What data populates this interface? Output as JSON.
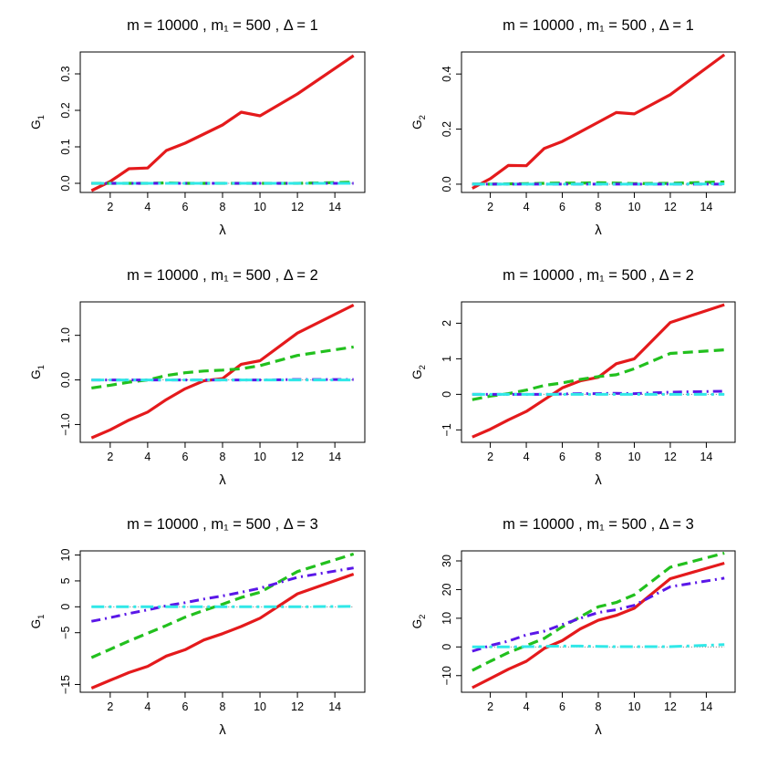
{
  "figure": {
    "background": "#ffffff"
  },
  "series_styles": [
    {
      "name": "red",
      "color": "#e41a1c",
      "dash": "",
      "width": 3.2
    },
    {
      "name": "green",
      "color": "#22c01e",
      "dash": "11 6",
      "width": 3.2
    },
    {
      "name": "blue",
      "color": "#5a17e8",
      "dash": "10 5 2 5",
      "width": 3.0
    },
    {
      "name": "cyan",
      "color": "#30e8e8",
      "dash": "14 5 3 5",
      "width": 3.0
    }
  ],
  "chart_data": [
    {
      "type": "line",
      "title": "m = 10000 ,  m₁ = 500 ,  Δ = 1",
      "xlabel": "λ",
      "ylabel": {
        "base": "G",
        "sub": "1"
      },
      "xlim": [
        0.4,
        15.6
      ],
      "ylim": [
        -0.025,
        0.36
      ],
      "xticks": [
        2,
        4,
        6,
        8,
        10,
        12,
        14
      ],
      "yticks": [
        0.0,
        0.1,
        0.2,
        0.3
      ],
      "ytick_labels": [
        "0.0",
        "0.1",
        "0.2",
        "0.3"
      ],
      "x": [
        1,
        2,
        3,
        4,
        5,
        6,
        7,
        8,
        9,
        10,
        12,
        15
      ],
      "series": [
        {
          "name": "red",
          "values": [
            -0.02,
            0.005,
            0.04,
            0.042,
            0.09,
            0.11,
            0.135,
            0.16,
            0.195,
            0.185,
            0.245,
            0.35
          ]
        },
        {
          "name": "green",
          "values": [
            0.0,
            0.0,
            0.0,
            0.0,
            0.001,
            0.0,
            0.0,
            0.0,
            0.0,
            0.0,
            0.0,
            0.003
          ]
        },
        {
          "name": "blue",
          "values": [
            0.0,
            0.0,
            0.0,
            0.0,
            0.0,
            0.0,
            0.0,
            0.0,
            0.0,
            0.0,
            0.0,
            0.0
          ]
        },
        {
          "name": "cyan",
          "values": [
            0.0,
            0.0,
            0.0,
            0.0,
            0.0,
            0.0,
            0.0,
            0.0,
            0.0,
            0.0,
            0.0,
            0.0
          ]
        }
      ]
    },
    {
      "type": "line",
      "title": "m = 10000 ,  m₁ = 500 ,  Δ = 1",
      "xlabel": "λ",
      "ylabel": {
        "base": "G",
        "sub": "2"
      },
      "xlim": [
        0.4,
        15.6
      ],
      "ylim": [
        -0.03,
        0.48
      ],
      "xticks": [
        2,
        4,
        6,
        8,
        10,
        12,
        14
      ],
      "yticks": [
        0.0,
        0.2,
        0.4
      ],
      "ytick_labels": [
        "0.0",
        "0.2",
        "0.4"
      ],
      "x": [
        1,
        2,
        3,
        4,
        5,
        6,
        7,
        8,
        9,
        10,
        12,
        15
      ],
      "series": [
        {
          "name": "red",
          "values": [
            -0.015,
            0.02,
            0.068,
            0.067,
            0.13,
            0.155,
            0.19,
            0.225,
            0.26,
            0.255,
            0.325,
            0.47
          ]
        },
        {
          "name": "green",
          "values": [
            0.0,
            0.0,
            0.001,
            0.002,
            0.003,
            0.004,
            0.004,
            0.005,
            0.004,
            0.002,
            0.003,
            0.008
          ]
        },
        {
          "name": "blue",
          "values": [
            0.0,
            0.0,
            0.0,
            0.0,
            0.0,
            0.0,
            0.0,
            0.0,
            0.0,
            0.0,
            0.0,
            0.0
          ]
        },
        {
          "name": "cyan",
          "values": [
            0.0,
            0.0,
            0.0,
            0.0,
            0.0,
            0.0,
            0.0,
            0.0,
            0.0,
            0.0,
            0.0,
            0.001
          ]
        }
      ]
    },
    {
      "type": "line",
      "title": "m = 10000 ,  m₁ = 500 ,  Δ = 2",
      "xlabel": "λ",
      "ylabel": {
        "base": "G",
        "sub": "1"
      },
      "xlim": [
        0.4,
        15.6
      ],
      "ylim": [
        -1.4,
        1.75
      ],
      "xticks": [
        2,
        4,
        6,
        8,
        10,
        12,
        14
      ],
      "yticks": [
        -1.0,
        0.0,
        1.0
      ],
      "ytick_labels": [
        "−1.0",
        "0.0",
        "1.0"
      ],
      "x": [
        1,
        2,
        3,
        4,
        5,
        6,
        7,
        8,
        9,
        10,
        12,
        15
      ],
      "series": [
        {
          "name": "red",
          "values": [
            -1.3,
            -1.12,
            -0.9,
            -0.72,
            -0.44,
            -0.2,
            -0.02,
            0.03,
            0.35,
            0.43,
            1.05,
            1.68
          ]
        },
        {
          "name": "green",
          "values": [
            -0.18,
            -0.12,
            -0.05,
            0.0,
            0.1,
            0.16,
            0.2,
            0.22,
            0.25,
            0.32,
            0.55,
            0.74
          ]
        },
        {
          "name": "blue",
          "values": [
            0.0,
            0.0,
            0.0,
            0.0,
            0.0,
            0.0,
            0.0,
            0.0,
            0.0,
            0.0,
            0.01,
            0.01
          ]
        },
        {
          "name": "cyan",
          "values": [
            0.0,
            0.0,
            0.0,
            0.0,
            0.0,
            0.0,
            0.0,
            0.0,
            0.0,
            0.0,
            0.0,
            0.0
          ]
        }
      ]
    },
    {
      "type": "line",
      "title": "m = 10000 ,  m₁ = 500 ,  Δ = 2",
      "xlabel": "λ",
      "ylabel": {
        "base": "G",
        "sub": "2"
      },
      "xlim": [
        0.4,
        15.6
      ],
      "ylim": [
        -1.35,
        2.6
      ],
      "xticks": [
        2,
        4,
        6,
        8,
        10,
        12,
        14
      ],
      "yticks": [
        -1,
        0,
        1,
        2
      ],
      "ytick_labels": [
        "−1",
        "0",
        "1",
        "2"
      ],
      "x": [
        1,
        2,
        3,
        4,
        5,
        6,
        7,
        8,
        9,
        10,
        12,
        15
      ],
      "series": [
        {
          "name": "red",
          "values": [
            -1.2,
            -0.98,
            -0.72,
            -0.48,
            -0.15,
            0.18,
            0.38,
            0.48,
            0.86,
            1.0,
            2.02,
            2.52
          ]
        },
        {
          "name": "green",
          "values": [
            -0.15,
            -0.05,
            0.02,
            0.12,
            0.25,
            0.32,
            0.42,
            0.5,
            0.55,
            0.72,
            1.15,
            1.25
          ]
        },
        {
          "name": "blue",
          "values": [
            0.0,
            0.0,
            0.0,
            0.0,
            0.0,
            0.01,
            0.02,
            0.02,
            0.03,
            0.02,
            0.06,
            0.09
          ]
        },
        {
          "name": "cyan",
          "values": [
            0.0,
            0.0,
            0.0,
            0.0,
            0.0,
            0.0,
            0.0,
            0.0,
            0.0,
            0.0,
            0.0,
            0.0
          ]
        }
      ]
    },
    {
      "type": "line",
      "title": "m = 10000 ,  m₁ = 500 ,  Δ = 3",
      "xlabel": "λ",
      "ylabel": {
        "base": "G",
        "sub": "1"
      },
      "xlim": [
        0.4,
        15.6
      ],
      "ylim": [
        -16.5,
        10.8
      ],
      "xticks": [
        2,
        4,
        6,
        8,
        10,
        12,
        14
      ],
      "yticks": [
        -15,
        -5,
        0,
        5,
        10
      ],
      "ytick_labels": [
        "−15",
        "−5",
        "0",
        "5",
        "10"
      ],
      "x": [
        1,
        2,
        3,
        4,
        5,
        6,
        7,
        8,
        9,
        10,
        12,
        15
      ],
      "series": [
        {
          "name": "red",
          "values": [
            -15.7,
            -14.2,
            -12.7,
            -11.5,
            -9.5,
            -8.3,
            -6.4,
            -5.2,
            -3.8,
            -2.2,
            2.5,
            6.3
          ]
        },
        {
          "name": "green",
          "values": [
            -9.8,
            -8.2,
            -6.6,
            -5.1,
            -3.6,
            -2.0,
            -0.7,
            0.5,
            1.8,
            2.8,
            6.8,
            10.2
          ]
        },
        {
          "name": "blue",
          "values": [
            -2.8,
            -2.1,
            -1.3,
            -0.6,
            0.2,
            0.8,
            1.5,
            2.1,
            2.8,
            3.6,
            5.7,
            7.5
          ]
        },
        {
          "name": "cyan",
          "values": [
            0.0,
            0.0,
            0.0,
            0.0,
            0.0,
            0.0,
            0.0,
            0.0,
            0.0,
            0.0,
            0.0,
            0.1
          ]
        }
      ]
    },
    {
      "type": "line",
      "title": "m = 10000 ,  m₁ = 500 ,  Δ = 3",
      "xlabel": "λ",
      "ylabel": {
        "base": "G",
        "sub": "2"
      },
      "xlim": [
        0.4,
        15.6
      ],
      "ylim": [
        -15.8,
        33.5
      ],
      "xticks": [
        2,
        4,
        6,
        8,
        10,
        12,
        14
      ],
      "yticks": [
        -10,
        0,
        10,
        20,
        30
      ],
      "ytick_labels": [
        "−10",
        "0",
        "10",
        "20",
        "30"
      ],
      "x": [
        1,
        2,
        3,
        4,
        5,
        6,
        7,
        8,
        9,
        10,
        12,
        15
      ],
      "series": [
        {
          "name": "red",
          "values": [
            -14.2,
            -11.0,
            -7.8,
            -5.0,
            -0.5,
            2.2,
            6.3,
            9.3,
            11.0,
            13.5,
            23.8,
            29.2
          ]
        },
        {
          "name": "green",
          "values": [
            -8.2,
            -5.0,
            -2.0,
            0.5,
            3.0,
            7.0,
            10.5,
            14.0,
            15.5,
            18.2,
            27.8,
            32.7
          ]
        },
        {
          "name": "blue",
          "values": [
            -1.5,
            0.5,
            2.0,
            4.2,
            5.5,
            7.8,
            10.0,
            12.0,
            13.0,
            14.5,
            21.0,
            24.0
          ]
        },
        {
          "name": "cyan",
          "values": [
            0.0,
            0.0,
            0.0,
            0.1,
            0.2,
            0.3,
            0.3,
            0.2,
            0.1,
            0.1,
            0.1,
            0.8
          ]
        }
      ]
    }
  ]
}
